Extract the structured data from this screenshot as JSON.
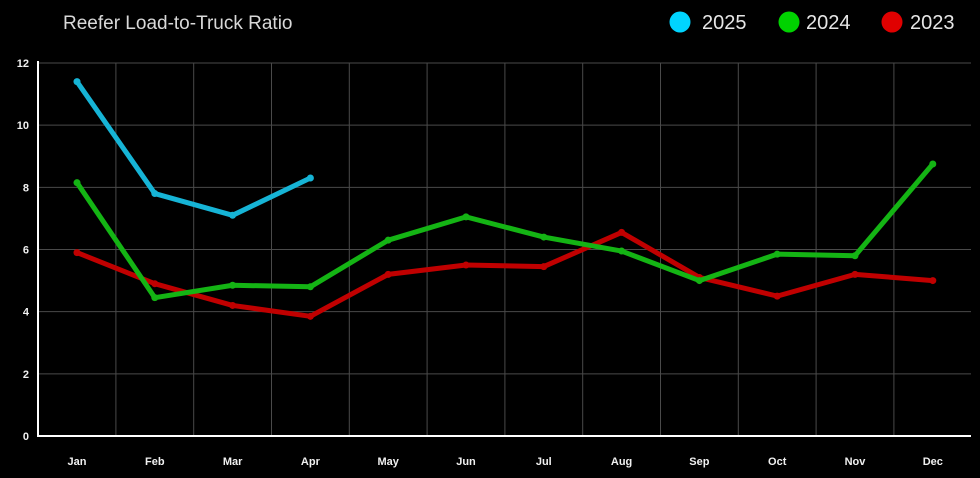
{
  "chart_data": {
    "type": "line",
    "title": "Reefer Load-to-Truck Ratio",
    "xlabel": "",
    "ylabel": "",
    "categories": [
      "Jan",
      "Feb",
      "Mar",
      "Apr",
      "May",
      "Jun",
      "Jul",
      "Aug",
      "Sep",
      "Oct",
      "Nov",
      "Dec"
    ],
    "ylim": [
      0,
      12
    ],
    "yticks": [
      0,
      2,
      4,
      6,
      8,
      10,
      12
    ],
    "grid": true,
    "legend": "top-right",
    "series": [
      {
        "name": "2025",
        "color": "#16b4d6",
        "legend_color": "#00d4ff",
        "values": [
          11.4,
          7.8,
          7.1,
          8.3,
          null,
          null,
          null,
          null,
          null,
          null,
          null,
          null
        ]
      },
      {
        "name": "2024",
        "color": "#14b414",
        "legend_color": "#00d200",
        "values": [
          8.15,
          4.45,
          4.85,
          4.8,
          6.3,
          7.05,
          6.4,
          5.95,
          5.0,
          5.85,
          5.8,
          8.75
        ]
      },
      {
        "name": "2023",
        "color": "#c00000",
        "legend_color": "#e00000",
        "values": [
          5.9,
          4.9,
          4.2,
          3.85,
          5.2,
          5.5,
          5.45,
          6.55,
          5.1,
          4.5,
          5.2,
          5.0
        ]
      }
    ]
  }
}
